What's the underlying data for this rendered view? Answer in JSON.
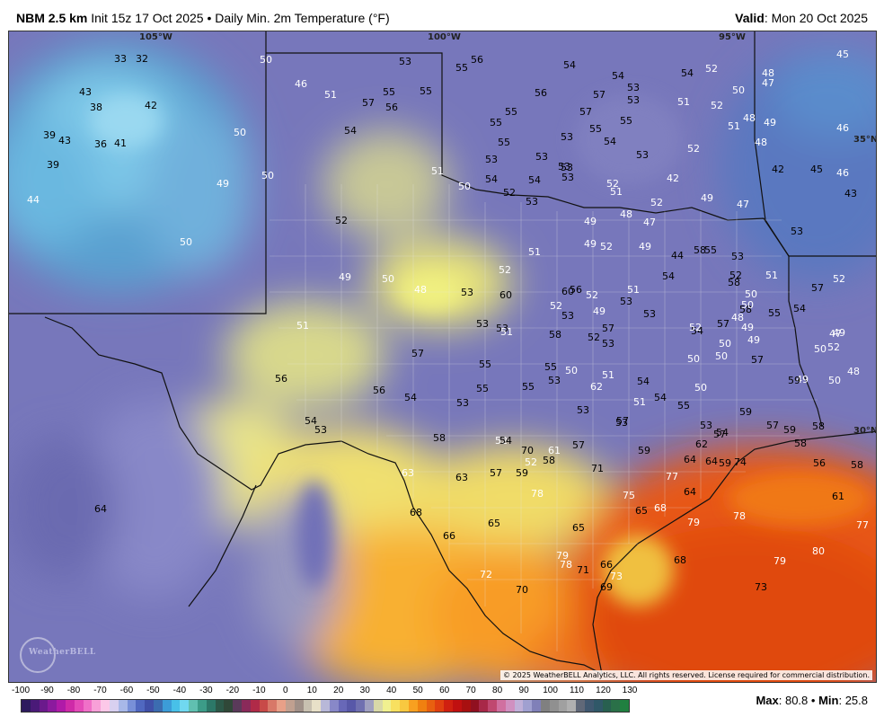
{
  "header": {
    "model": "NBM 2.5 km",
    "init": "Init 15z 17 Oct 2025",
    "bullet": "•",
    "product": "Daily Min. 2m Temperature (°F)",
    "valid_label": "Valid",
    "valid_date": ": Mon 20 Oct 2025"
  },
  "map": {
    "longitudes": [
      "105°W",
      "100°W",
      "95°W"
    ],
    "latitudes": [
      "35°N",
      "30°N"
    ],
    "copyright": "© 2025 WeatherBELL Analytics, LLC. All rights reserved. License required for commercial distribution.",
    "logo": "WeatherBELL",
    "temperature_labels": [
      {
        "v": "33",
        "c": "k"
      },
      {
        "v": "32",
        "c": "k"
      },
      {
        "v": "50",
        "c": "w"
      },
      {
        "v": "53",
        "c": "k"
      },
      {
        "v": "55",
        "c": "k"
      },
      {
        "v": "56",
        "c": "k"
      },
      {
        "v": "54",
        "c": "k"
      },
      {
        "v": "54",
        "c": "k"
      },
      {
        "v": "54",
        "c": "k"
      },
      {
        "v": "52",
        "c": "w"
      },
      {
        "v": "48",
        "c": "w"
      },
      {
        "v": "47",
        "c": "w"
      },
      {
        "v": "45",
        "c": "w"
      },
      {
        "v": "43",
        "c": "k"
      },
      {
        "v": "38",
        "c": "k"
      },
      {
        "v": "42",
        "c": "k"
      },
      {
        "v": "46",
        "c": "w"
      },
      {
        "v": "51",
        "c": "w"
      },
      {
        "v": "55",
        "c": "k"
      },
      {
        "v": "55",
        "c": "k"
      },
      {
        "v": "57",
        "c": "k"
      },
      {
        "v": "56",
        "c": "k"
      },
      {
        "v": "56",
        "c": "k"
      },
      {
        "v": "57",
        "c": "k"
      },
      {
        "v": "53",
        "c": "k"
      },
      {
        "v": "53",
        "c": "k"
      },
      {
        "v": "51",
        "c": "w"
      },
      {
        "v": "52",
        "c": "w"
      },
      {
        "v": "50",
        "c": "w"
      },
      {
        "v": "39",
        "c": "k"
      },
      {
        "v": "43",
        "c": "k"
      },
      {
        "v": "36",
        "c": "k"
      },
      {
        "v": "41",
        "c": "k"
      },
      {
        "v": "50",
        "c": "w"
      },
      {
        "v": "54",
        "c": "k"
      },
      {
        "v": "55",
        "c": "k"
      },
      {
        "v": "55",
        "c": "k"
      },
      {
        "v": "57",
        "c": "k"
      },
      {
        "v": "53",
        "c": "k"
      },
      {
        "v": "55",
        "c": "k"
      },
      {
        "v": "55",
        "c": "k"
      },
      {
        "v": "54",
        "c": "k"
      },
      {
        "v": "51",
        "c": "w"
      },
      {
        "v": "48",
        "c": "w"
      },
      {
        "v": "49",
        "c": "w"
      },
      {
        "v": "46",
        "c": "w"
      },
      {
        "v": "48",
        "c": "w"
      },
      {
        "v": "53",
        "c": "k"
      },
      {
        "v": "52",
        "c": "w"
      },
      {
        "v": "39",
        "c": "k"
      },
      {
        "v": "55",
        "c": "k"
      },
      {
        "v": "53",
        "c": "k"
      },
      {
        "v": "53",
        "c": "k"
      },
      {
        "v": "53",
        "c": "k"
      },
      {
        "v": "53",
        "c": "k"
      },
      {
        "v": "42",
        "c": "k"
      },
      {
        "v": "45",
        "c": "k"
      },
      {
        "v": "46",
        "c": "w"
      },
      {
        "v": "44",
        "c": "w"
      },
      {
        "v": "49",
        "c": "w"
      },
      {
        "v": "50",
        "c": "w"
      },
      {
        "v": "52",
        "c": "w"
      },
      {
        "v": "42",
        "c": "w"
      },
      {
        "v": "51",
        "c": "w"
      },
      {
        "v": "54",
        "c": "k"
      },
      {
        "v": "54",
        "c": "k"
      },
      {
        "v": "51",
        "c": "w"
      },
      {
        "v": "52",
        "c": "w"
      },
      {
        "v": "49",
        "c": "w"
      },
      {
        "v": "47",
        "c": "w"
      },
      {
        "v": "43",
        "c": "k"
      },
      {
        "v": "53",
        "c": "k"
      },
      {
        "v": "52",
        "c": "k"
      },
      {
        "v": "52",
        "c": "k"
      },
      {
        "v": "53",
        "c": "k"
      },
      {
        "v": "50",
        "c": "w"
      },
      {
        "v": "49",
        "c": "w"
      },
      {
        "v": "48",
        "c": "w"
      },
      {
        "v": "47",
        "c": "w"
      },
      {
        "v": "44",
        "c": "k"
      },
      {
        "v": "55",
        "c": "k"
      },
      {
        "v": "53",
        "c": "k"
      },
      {
        "v": "52",
        "c": "k"
      },
      {
        "v": "53",
        "c": "k"
      },
      {
        "v": "50",
        "c": "w"
      },
      {
        "v": "51",
        "c": "w"
      },
      {
        "v": "49",
        "c": "w"
      },
      {
        "v": "52",
        "c": "w"
      },
      {
        "v": "49",
        "c": "w"
      },
      {
        "v": "58",
        "c": "k"
      },
      {
        "v": "54",
        "c": "k"
      },
      {
        "v": "58",
        "c": "k"
      },
      {
        "v": "51",
        "c": "w"
      },
      {
        "v": "57",
        "c": "k"
      },
      {
        "v": "52",
        "c": "w"
      },
      {
        "v": "50",
        "c": "w"
      },
      {
        "v": "49",
        "c": "w"
      },
      {
        "v": "48",
        "c": "w"
      },
      {
        "v": "49",
        "c": "w"
      },
      {
        "v": "50",
        "c": "w"
      },
      {
        "v": "49",
        "c": "w"
      },
      {
        "v": "48",
        "c": "w"
      },
      {
        "v": "53",
        "c": "k"
      },
      {
        "v": "60",
        "c": "k"
      },
      {
        "v": "60",
        "c": "k"
      },
      {
        "v": "56",
        "c": "k"
      },
      {
        "v": "52",
        "c": "w"
      },
      {
        "v": "52",
        "c": "w"
      },
      {
        "v": "52",
        "c": "w"
      },
      {
        "v": "53",
        "c": "k"
      },
      {
        "v": "49",
        "c": "w"
      },
      {
        "v": "53",
        "c": "k"
      },
      {
        "v": "54",
        "c": "k"
      },
      {
        "v": "57",
        "c": "k"
      },
      {
        "v": "58",
        "c": "k"
      },
      {
        "v": "58",
        "c": "k"
      },
      {
        "v": "52",
        "c": "k"
      },
      {
        "v": "53",
        "c": "k"
      },
      {
        "v": "53",
        "c": "k"
      },
      {
        "v": "51",
        "c": "w"
      },
      {
        "v": "50",
        "c": "w"
      },
      {
        "v": "52",
        "c": "w"
      },
      {
        "v": "51",
        "c": "w"
      },
      {
        "v": "50",
        "c": "w"
      },
      {
        "v": "54",
        "c": "k"
      },
      {
        "v": "51",
        "c": "w"
      },
      {
        "v": "53",
        "c": "k"
      },
      {
        "v": "53",
        "c": "k"
      },
      {
        "v": "53",
        "c": "k"
      },
      {
        "v": "52",
        "c": "w"
      },
      {
        "v": "50",
        "c": "w"
      },
      {
        "v": "49",
        "c": "w"
      },
      {
        "v": "47",
        "c": "w"
      },
      {
        "v": "49",
        "c": "w"
      },
      {
        "v": "57",
        "c": "k"
      },
      {
        "v": "57",
        "c": "k"
      },
      {
        "v": "55",
        "c": "k"
      },
      {
        "v": "55",
        "c": "k"
      },
      {
        "v": "50",
        "c": "w"
      },
      {
        "v": "50",
        "c": "w"
      },
      {
        "v": "50",
        "c": "w"
      },
      {
        "v": "59",
        "c": "k"
      },
      {
        "v": "56",
        "c": "k"
      },
      {
        "v": "56",
        "c": "k"
      },
      {
        "v": "54",
        "c": "k"
      },
      {
        "v": "53",
        "c": "k"
      },
      {
        "v": "55",
        "c": "k"
      },
      {
        "v": "51",
        "c": "w"
      },
      {
        "v": "54",
        "c": "k"
      },
      {
        "v": "54",
        "c": "k"
      },
      {
        "v": "50",
        "c": "w"
      },
      {
        "v": "50",
        "c": "w"
      },
      {
        "v": "48",
        "c": "w"
      },
      {
        "v": "55",
        "c": "k"
      },
      {
        "v": "52",
        "c": "w"
      },
      {
        "v": "57",
        "c": "k"
      },
      {
        "v": "55",
        "c": "k"
      },
      {
        "v": "53",
        "c": "k"
      },
      {
        "v": "53",
        "c": "k"
      },
      {
        "v": "51",
        "c": "w"
      },
      {
        "v": "55",
        "c": "k"
      },
      {
        "v": "57",
        "c": "k"
      },
      {
        "v": "59",
        "c": "k"
      },
      {
        "v": "54",
        "c": "k"
      },
      {
        "v": "53",
        "c": "k"
      },
      {
        "v": "58",
        "c": "k"
      },
      {
        "v": "54",
        "c": "k"
      },
      {
        "v": "52",
        "c": "w"
      },
      {
        "v": "53",
        "c": "k"
      },
      {
        "v": "57",
        "c": "k"
      },
      {
        "v": "54",
        "c": "k"
      },
      {
        "v": "59",
        "c": "k"
      },
      {
        "v": "57",
        "c": "k"
      },
      {
        "v": "59",
        "c": "k"
      },
      {
        "v": "58",
        "c": "k"
      },
      {
        "v": "61",
        "c": "w"
      },
      {
        "v": "62",
        "c": "w"
      },
      {
        "v": "71",
        "c": "k"
      },
      {
        "v": "70",
        "c": "k"
      },
      {
        "v": "62",
        "c": "k"
      },
      {
        "v": "57",
        "c": "k"
      },
      {
        "v": "59",
        "c": "k"
      },
      {
        "v": "58",
        "c": "k"
      },
      {
        "v": "58",
        "c": "k"
      },
      {
        "v": "57",
        "c": "k"
      },
      {
        "v": "59",
        "c": "k"
      },
      {
        "v": "74",
        "c": "k"
      },
      {
        "v": "56",
        "c": "k"
      },
      {
        "v": "58",
        "c": "k"
      },
      {
        "v": "63",
        "c": "w"
      },
      {
        "v": "63",
        "c": "k"
      },
      {
        "v": "77",
        "c": "w"
      },
      {
        "v": "78",
        "c": "w"
      },
      {
        "v": "75",
        "c": "w"
      },
      {
        "v": "64",
        "c": "k"
      },
      {
        "v": "64",
        "c": "k"
      },
      {
        "v": "61",
        "c": "k"
      },
      {
        "v": "64",
        "c": "k"
      },
      {
        "v": "64",
        "c": "k"
      },
      {
        "v": "65",
        "c": "k"
      },
      {
        "v": "68",
        "c": "w"
      },
      {
        "v": "79",
        "c": "w"
      },
      {
        "v": "78",
        "c": "w"
      },
      {
        "v": "77",
        "c": "w"
      },
      {
        "v": "68",
        "c": "k"
      },
      {
        "v": "65",
        "c": "k"
      },
      {
        "v": "65",
        "c": "k"
      },
      {
        "v": "66",
        "c": "k"
      },
      {
        "v": "79",
        "c": "w"
      },
      {
        "v": "78",
        "c": "w"
      },
      {
        "v": "66",
        "c": "k"
      },
      {
        "v": "68",
        "c": "k"
      },
      {
        "v": "79",
        "c": "w"
      },
      {
        "v": "80",
        "c": "w"
      },
      {
        "v": "69",
        "c": "k"
      },
      {
        "v": "70",
        "c": "k"
      },
      {
        "v": "72",
        "c": "w"
      },
      {
        "v": "71",
        "c": "k"
      },
      {
        "v": "73",
        "c": "w"
      },
      {
        "v": "73",
        "c": "k"
      }
    ]
  },
  "scale": {
    "ticks": [
      "-100",
      "-90",
      "-80",
      "-70",
      "-60",
      "-50",
      "-40",
      "-30",
      "-20",
      "-10",
      "0",
      "10",
      "20",
      "30",
      "40",
      "50",
      "60",
      "70",
      "80",
      "90",
      "100",
      "110",
      "120",
      "130"
    ],
    "colors": [
      "#2d1a5e",
      "#4a1a78",
      "#6b1a8c",
      "#8c1a9e",
      "#b01aa8",
      "#cf2aa8",
      "#e44ab8",
      "#f070c8",
      "#f8a0d8",
      "#fcc8e8",
      "#d8d0f0",
      "#a8b8e8",
      "#7890d8",
      "#5068c0",
      "#4050a8",
      "#3c6cb0",
      "#3c9cd8",
      "#48c0e8",
      "#70d8f0",
      "#60c0b0",
      "#3c9c88",
      "#2c7868",
      "#2c5848",
      "#304838",
      "#5a3a5a",
      "#8a2a5a",
      "#b02a48",
      "#c84a48",
      "#d87868",
      "#e8a088",
      "#c0a090",
      "#a09088",
      "#c8c0b0",
      "#e8e0c8",
      "#b8b8d8",
      "#8888c8",
      "#6868b8",
      "#5858a8",
      "#7070b0",
      "#a0a0c0",
      "#d8d8a8",
      "#f0f090",
      "#f8e060",
      "#f8c840",
      "#f8a020",
      "#f08010",
      "#e86010",
      "#e04010",
      "#d02010",
      "#c01010",
      "#a81010",
      "#901020",
      "#a82848",
      "#c04870",
      "#d070a0",
      "#d090c0",
      "#c0b0d8",
      "#a0a0d0",
      "#8080b8",
      "#808080",
      "#909090",
      "#a0a0a0",
      "#b0b0b0",
      "#606878",
      "#405870",
      "#305868",
      "#286050",
      "#2a7048",
      "#208040"
    ],
    "max_label": "Max",
    "max_value": ": 80.8",
    "bullet": "•",
    "min_label": "Min",
    "min_value": ": 25.8"
  }
}
